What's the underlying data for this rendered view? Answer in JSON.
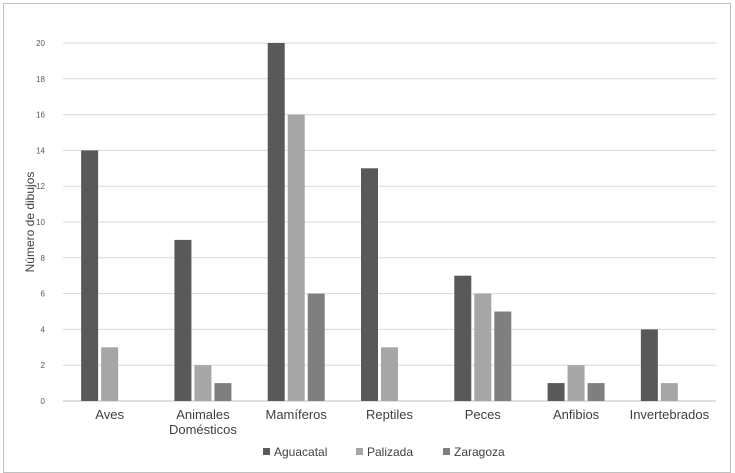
{
  "chart_data": {
    "type": "bar",
    "title": "",
    "xlabel": "",
    "ylabel": "Número de dibujos",
    "ylim": [
      0,
      20
    ],
    "yticks": [
      0,
      2,
      4,
      6,
      8,
      10,
      12,
      14,
      16,
      18,
      20
    ],
    "grid": true,
    "legend_position": "bottom",
    "categories": [
      [
        "Aves"
      ],
      [
        "Animales",
        "Domésticos"
      ],
      [
        "Mamíferos"
      ],
      [
        "Reptiles"
      ],
      [
        "Peces"
      ],
      [
        "Anfibios"
      ],
      [
        "Invertebrados"
      ]
    ],
    "series": [
      {
        "name": "Aguacatal",
        "color": "#595959",
        "values": [
          14,
          9,
          20,
          13,
          7,
          1,
          4
        ]
      },
      {
        "name": "Palizada",
        "color": "#a6a6a6",
        "values": [
          3,
          2,
          16,
          3,
          6,
          2,
          1
        ]
      },
      {
        "name": "Zaragoza",
        "color": "#7f7f7f",
        "values": [
          0,
          1,
          6,
          0,
          5,
          1,
          0
        ]
      }
    ]
  }
}
